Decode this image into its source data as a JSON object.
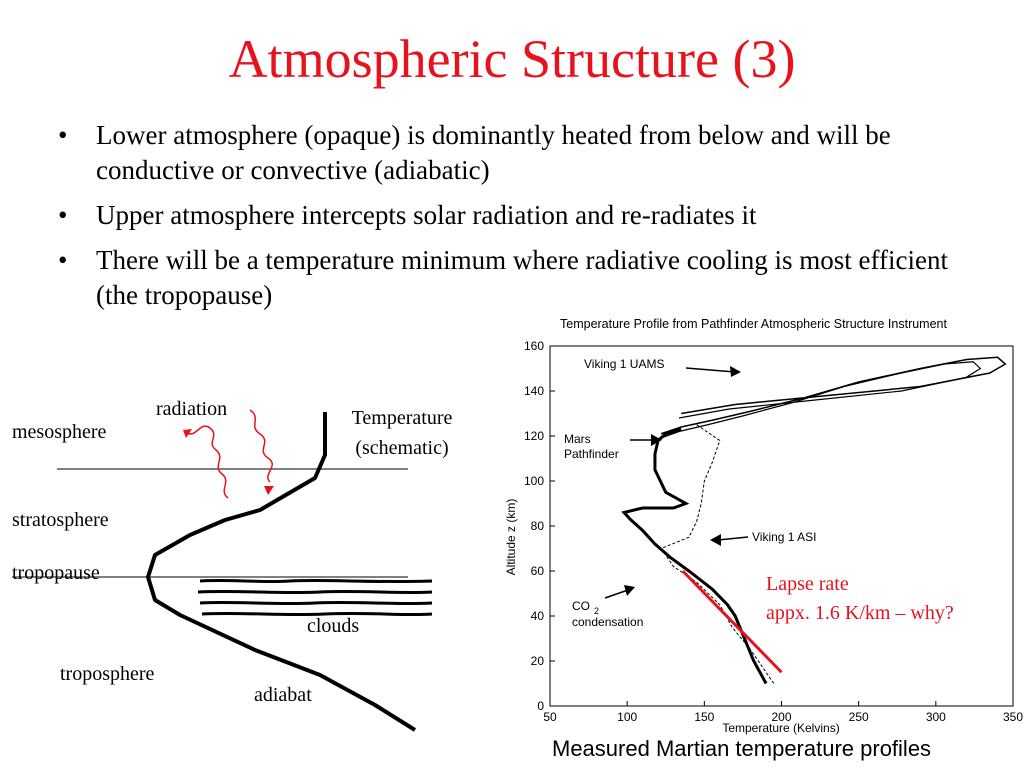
{
  "slide": {
    "title": "Atmospheric Structure (3)",
    "bullets": [
      "Lower atmosphere (opaque) is dominantly heated from below and will be conductive or convective (adiabatic)",
      "Upper atmosphere intercepts solar radiation and re-radiates it",
      "There will be a temperature minimum where radiative cooling is most efficient  (the tropopause)"
    ]
  },
  "schematic": {
    "labels": {
      "radiation": "radiation",
      "temperature_line1": "Temperature",
      "temperature_line2": "(schematic)",
      "mesosphere": "mesosphere",
      "stratosphere": "stratosphere",
      "tropopause": "tropopause",
      "clouds": "clouds",
      "troposphere": "troposphere",
      "adiabat": "adiabat"
    },
    "colors": {
      "radiation": "#e8121c",
      "profile": "#000000"
    }
  },
  "chart_data": {
    "type": "line",
    "title": "Temperature Profile from Pathfinder Atmospheric Structure Instrument",
    "xlabel": "Temperature (Kelvins)",
    "ylabel": "Altitude z (km)",
    "xlim": [
      50,
      350
    ],
    "ylim": [
      0,
      160
    ],
    "xticks": [
      50,
      100,
      150,
      200,
      250,
      300,
      350
    ],
    "yticks": [
      0,
      20,
      40,
      60,
      80,
      100,
      120,
      140,
      160
    ],
    "series": [
      {
        "name": "Mars Pathfinder",
        "x": [
          190,
          182,
          176,
          170,
          165,
          155,
          140,
          128,
          118,
          110,
          102,
          98,
          110,
          130,
          138,
          125,
          118,
          118,
          120,
          125,
          135
        ],
        "y": [
          10,
          20,
          30,
          40,
          45,
          52,
          60,
          66,
          72,
          78,
          83,
          86,
          88,
          88,
          90,
          95,
          105,
          112,
          118,
          121,
          123
        ]
      },
      {
        "name": "Viking 1 UAMS",
        "x": [
          135,
          170,
          230,
          290,
          335,
          345,
          340,
          320,
          290,
          250,
          215,
          180,
          155,
          135,
          122
        ],
        "y": [
          130,
          134,
          138,
          142,
          148,
          152,
          155,
          154,
          150,
          144,
          137,
          131,
          127,
          124,
          121
        ]
      },
      {
        "name": "Viking 1 ASI",
        "x": [
          195,
          180,
          168,
          160,
          145,
          130,
          122,
          140,
          145,
          148,
          150,
          155,
          160,
          145
        ],
        "y": [
          10,
          25,
          35,
          45,
          55,
          62,
          70,
          75,
          82,
          90,
          100,
          108,
          118,
          125
        ]
      }
    ],
    "annotations": [
      "Viking 1 UAMS",
      "Mars",
      "Pathfinder",
      "Viking 1 ASI",
      "CO",
      "2",
      "condensation"
    ],
    "lapse_rate_note": [
      "Lapse rate",
      "appx. 1.6 K/km – why?"
    ],
    "lapse_line": {
      "x": [
        136,
        200
      ],
      "y": [
        60,
        15
      ]
    }
  },
  "caption": "Measured Martian temperature profiles"
}
